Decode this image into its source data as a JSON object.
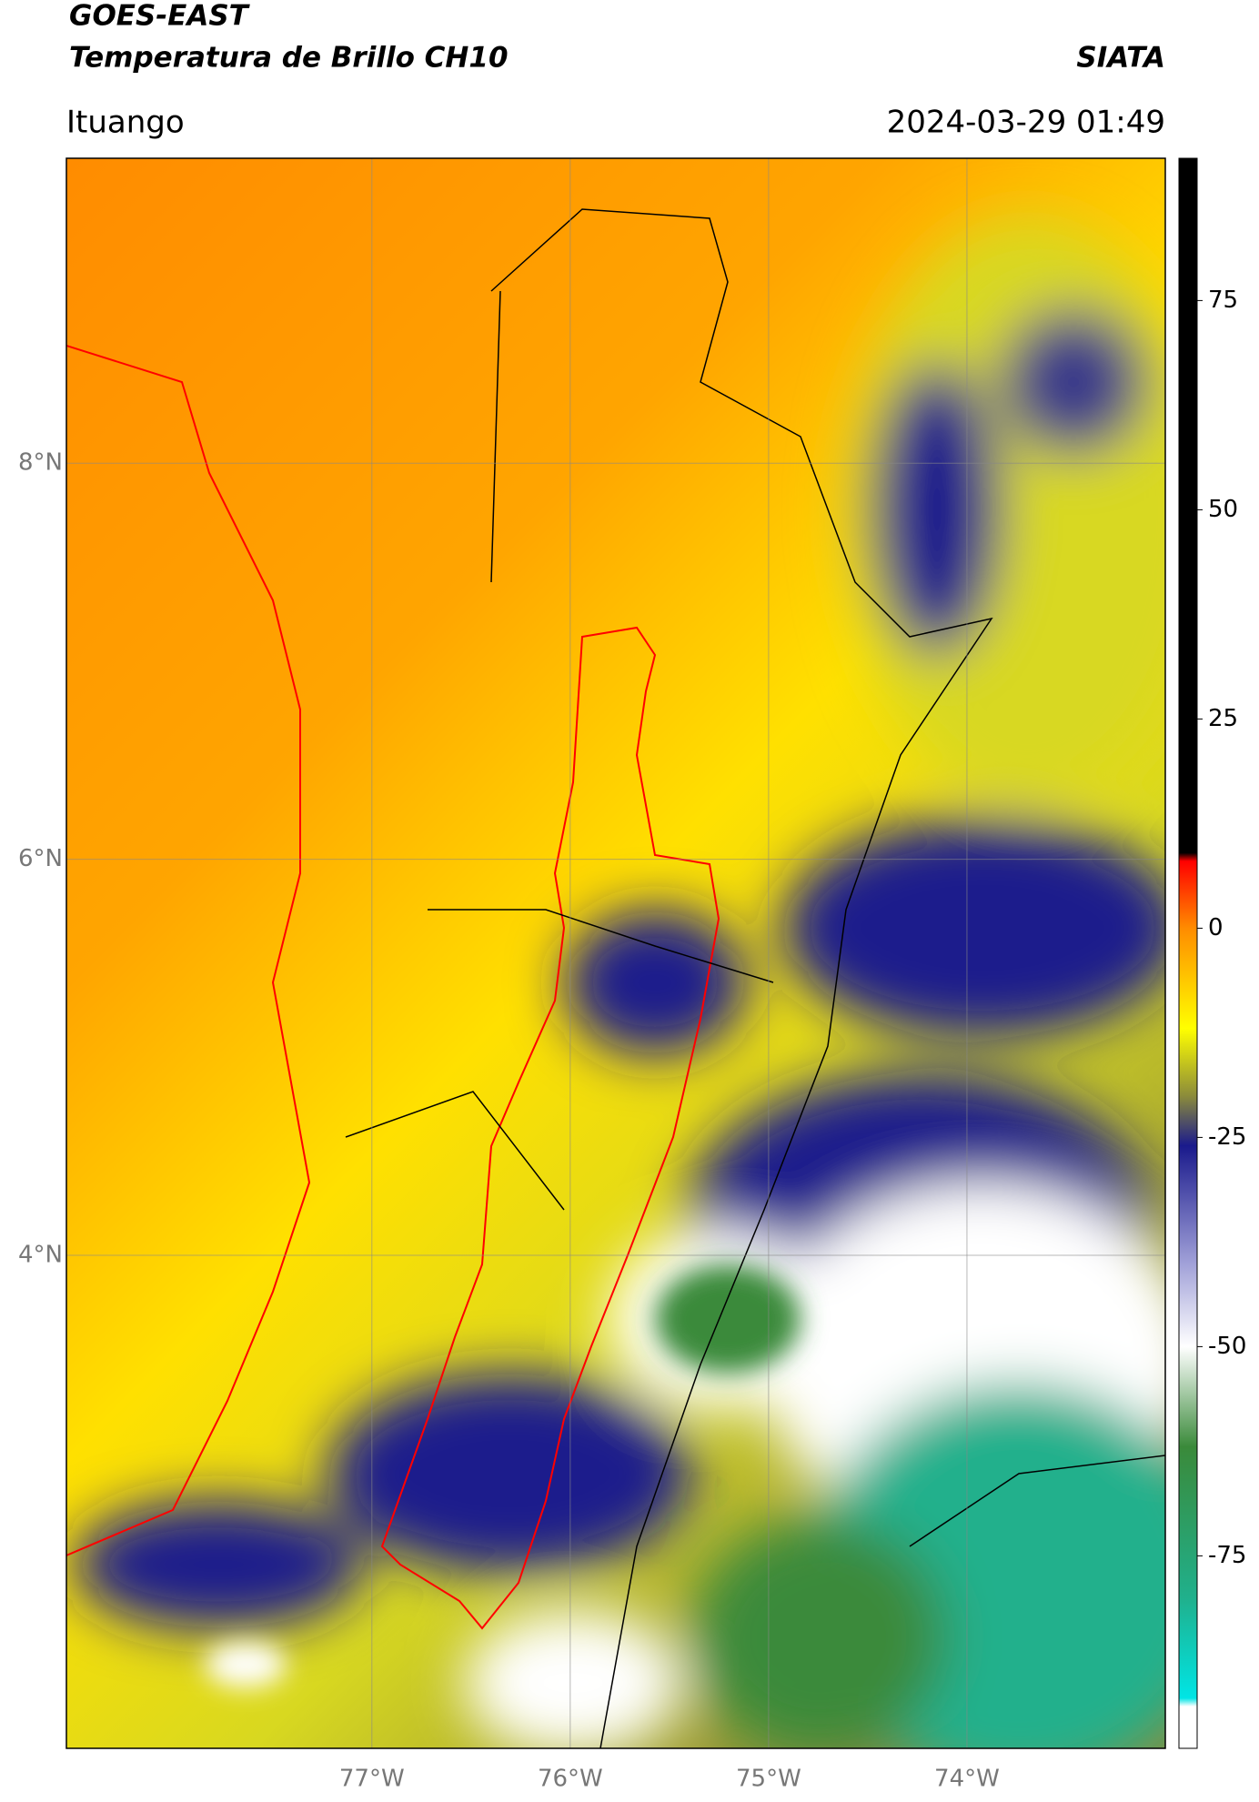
{
  "chart_data": {
    "type": "map",
    "title": "GOES-EAST",
    "subtitle": "Temperatura de Brillo CH10",
    "source": "SIATA",
    "location": "Ituango",
    "datetime": "2024-03-29 01:49",
    "xlim": [
      -78.54,
      -73.0
    ],
    "ylim": [
      1.51,
      9.54
    ],
    "xticks": [
      {
        "value": -77,
        "label": "77°W"
      },
      {
        "value": -76,
        "label": "76°W"
      },
      {
        "value": -75,
        "label": "75°W"
      },
      {
        "value": -74,
        "label": "74°W"
      }
    ],
    "yticks": [
      {
        "value": 8,
        "label": "8°N"
      },
      {
        "value": 6,
        "label": "6°N"
      },
      {
        "value": 4,
        "label": "4°N"
      }
    ],
    "grid": true,
    "colorbar": {
      "lim": [
        -98,
        92
      ],
      "ticks": [
        75,
        50,
        25,
        0,
        -25,
        -50,
        -75
      ],
      "stops": [
        {
          "value": 92,
          "color": "#000000"
        },
        {
          "value": 9,
          "color": "#000000"
        },
        {
          "value": 8,
          "color": "#ff0000"
        },
        {
          "value": 0,
          "color": "#ff8c00"
        },
        {
          "value": -12,
          "color": "#ffff00"
        },
        {
          "value": -20,
          "color": "#8c8c3a"
        },
        {
          "value": -26,
          "color": "#1a1a8c"
        },
        {
          "value": -40,
          "color": "#a0a0d8"
        },
        {
          "value": -50,
          "color": "#ffffff"
        },
        {
          "value": -62,
          "color": "#3a8a3a"
        },
        {
          "value": -80,
          "color": "#20b08c"
        },
        {
          "value": -92,
          "color": "#00e5e5"
        },
        {
          "value": -93,
          "color": "#ffffff"
        },
        {
          "value": -98,
          "color": "#ffffff"
        }
      ]
    }
  }
}
